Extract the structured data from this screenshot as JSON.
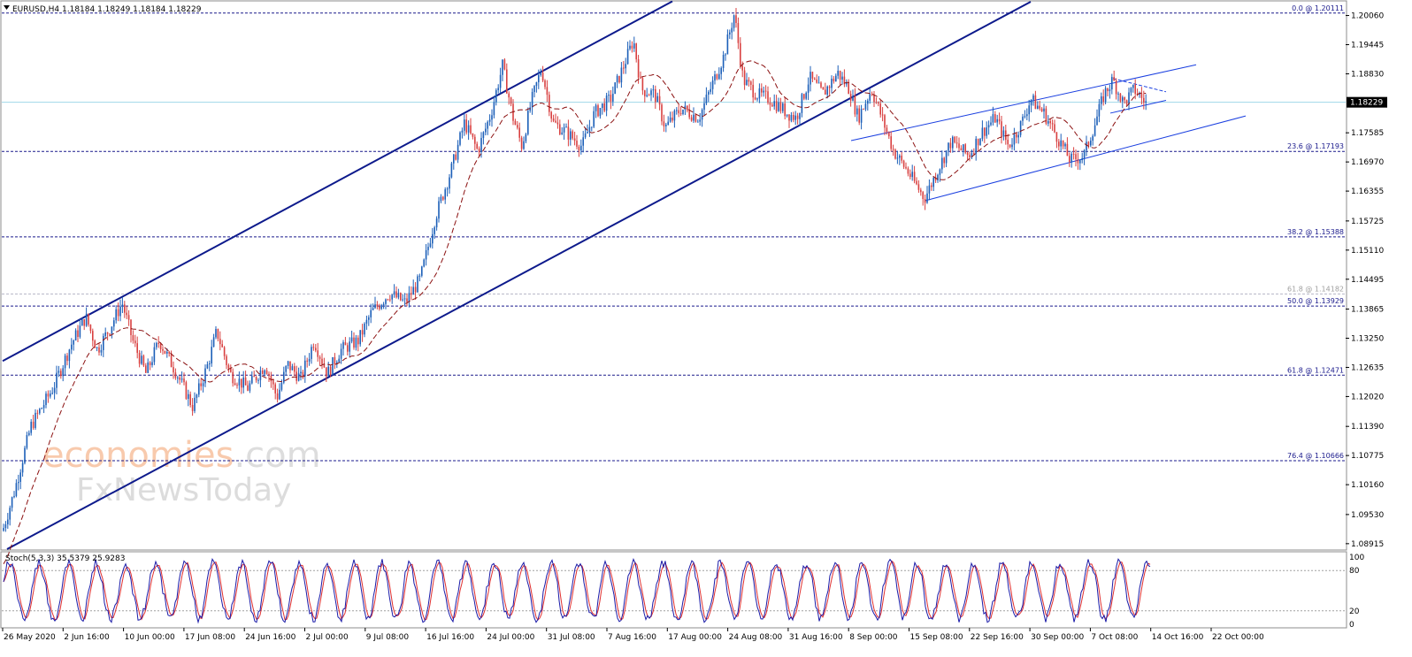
{
  "header": {
    "symbol": "EURUSD,H4",
    "ohlc": "1.18184 1.18249 1.18184 1.18229"
  },
  "watermark": {
    "line1_a": "economies",
    "line1_b": ".com",
    "line2": "FxNewsToday"
  },
  "current_price_label": "1.18229",
  "colors": {
    "bull": "#1c5fb8",
    "bear": "#d84040",
    "channel": "#0d1a8c",
    "wedge": "#1a3fe0",
    "fib": "#1a1a8c",
    "ma": "#8b1010",
    "stoch_main": "#1a1aa8",
    "stoch_signal": "#e03030",
    "price_line": "#9fd7e8"
  },
  "chart_data": {
    "type": "candlestick",
    "instrument": "EURUSD",
    "timeframe": "H4",
    "y_range": [
      1.088,
      1.2035
    ],
    "y_ticks": [
      "1.20060",
      "1.19445",
      "1.18830",
      "1.18229",
      "1.17585",
      "1.16970",
      "1.16355",
      "1.15725",
      "1.15110",
      "1.14495",
      "1.13865",
      "1.13250",
      "1.12635",
      "1.12020",
      "1.11390",
      "1.10775",
      "1.10160",
      "1.09530",
      "1.08915"
    ],
    "x_ticks": [
      "26 May 2020",
      "2 Jun 16:00",
      "10 Jun 00:00",
      "17 Jun 08:00",
      "24 Jun 16:00",
      "2 Jul 00:00",
      "9 Jul 08:00",
      "16 Jul 16:00",
      "24 Jul 00:00",
      "31 Jul 08:00",
      "7 Aug 16:00",
      "17 Aug 00:00",
      "24 Aug 08:00",
      "31 Aug 16:00",
      "8 Sep 00:00",
      "15 Sep 08:00",
      "22 Sep 16:00",
      "30 Sep 00:00",
      "7 Oct 08:00",
      "14 Oct 16:00",
      "22 Oct 00:00"
    ],
    "current_price": 1.18229,
    "fibonacci_levels": [
      {
        "label": "0.0 @ 1.20111",
        "price": 1.20111
      },
      {
        "label": "23.6 @ 1.17193",
        "price": 1.17193
      },
      {
        "label": "38.2 @ 1.15388",
        "price": 1.15388
      },
      {
        "label": "61.8 @ 1.14182",
        "price": 1.14182,
        "faint": true
      },
      {
        "label": "50.0 @ 1.13929",
        "price": 1.13929
      },
      {
        "label": "61.8 @ 1.12471",
        "price": 1.12471
      },
      {
        "label": "76.4 @ 1.10666",
        "price": 1.10666
      }
    ],
    "price_path": [
      [
        0,
        1.09
      ],
      [
        16,
        1.1
      ],
      [
        35,
        1.114
      ],
      [
        60,
        1.122
      ],
      [
        80,
        1.131
      ],
      [
        97,
        1.137
      ],
      [
        110,
        1.13
      ],
      [
        125,
        1.135
      ],
      [
        138,
        1.14
      ],
      [
        150,
        1.132
      ],
      [
        165,
        1.125
      ],
      [
        180,
        1.132
      ],
      [
        200,
        1.125
      ],
      [
        218,
        1.118
      ],
      [
        235,
        1.127
      ],
      [
        245,
        1.134
      ],
      [
        260,
        1.125
      ],
      [
        280,
        1.122
      ],
      [
        300,
        1.127
      ],
      [
        313,
        1.12
      ],
      [
        325,
        1.127
      ],
      [
        340,
        1.124
      ],
      [
        355,
        1.132
      ],
      [
        370,
        1.125
      ],
      [
        385,
        1.13
      ],
      [
        405,
        1.132
      ],
      [
        420,
        1.138
      ],
      [
        440,
        1.142
      ],
      [
        458,
        1.14
      ],
      [
        475,
        1.145
      ],
      [
        492,
        1.158
      ],
      [
        510,
        1.168
      ],
      [
        525,
        1.178
      ],
      [
        540,
        1.172
      ],
      [
        555,
        1.18
      ],
      [
        568,
        1.19
      ],
      [
        580,
        1.179
      ],
      [
        590,
        1.173
      ],
      [
        600,
        1.182
      ],
      [
        612,
        1.1895
      ],
      [
        625,
        1.178
      ],
      [
        640,
        1.176
      ],
      [
        658,
        1.173
      ],
      [
        672,
        1.18
      ],
      [
        690,
        1.183
      ],
      [
        705,
        1.19
      ],
      [
        716,
        1.1955
      ],
      [
        725,
        1.185
      ],
      [
        740,
        1.184
      ],
      [
        752,
        1.177
      ],
      [
        770,
        1.181
      ],
      [
        790,
        1.179
      ],
      [
        805,
        1.186
      ],
      [
        818,
        1.192
      ],
      [
        830,
        1.201
      ],
      [
        840,
        1.187
      ],
      [
        855,
        1.184
      ],
      [
        870,
        1.183
      ],
      [
        890,
        1.18
      ],
      [
        900,
        1.179
      ],
      [
        915,
        1.1875
      ],
      [
        930,
        1.184
      ],
      [
        947,
        1.1885
      ],
      [
        960,
        1.185
      ],
      [
        970,
        1.179
      ],
      [
        985,
        1.185
      ],
      [
        995,
        1.18
      ],
      [
        1010,
        1.172
      ],
      [
        1025,
        1.168
      ],
      [
        1045,
        1.162
      ],
      [
        1060,
        1.168
      ],
      [
        1075,
        1.174
      ],
      [
        1095,
        1.171
      ],
      [
        1110,
        1.176
      ],
      [
        1125,
        1.179
      ],
      [
        1140,
        1.173
      ],
      [
        1155,
        1.178
      ],
      [
        1165,
        1.183
      ],
      [
        1180,
        1.18
      ],
      [
        1195,
        1.175
      ],
      [
        1210,
        1.17
      ],
      [
        1225,
        1.171
      ],
      [
        1238,
        1.178
      ],
      [
        1248,
        1.184
      ],
      [
        1258,
        1.187
      ],
      [
        1270,
        1.182
      ],
      [
        1282,
        1.185
      ],
      [
        1295,
        1.1822
      ]
    ],
    "indicator": {
      "name": "Stoch(5,3,3)",
      "main_value": 35.5379,
      "signal_value": 25.9283,
      "y_range": [
        0,
        100
      ],
      "y_ticks": [
        "100",
        "80",
        "20",
        "0"
      ],
      "levels": [
        80,
        20
      ]
    }
  }
}
